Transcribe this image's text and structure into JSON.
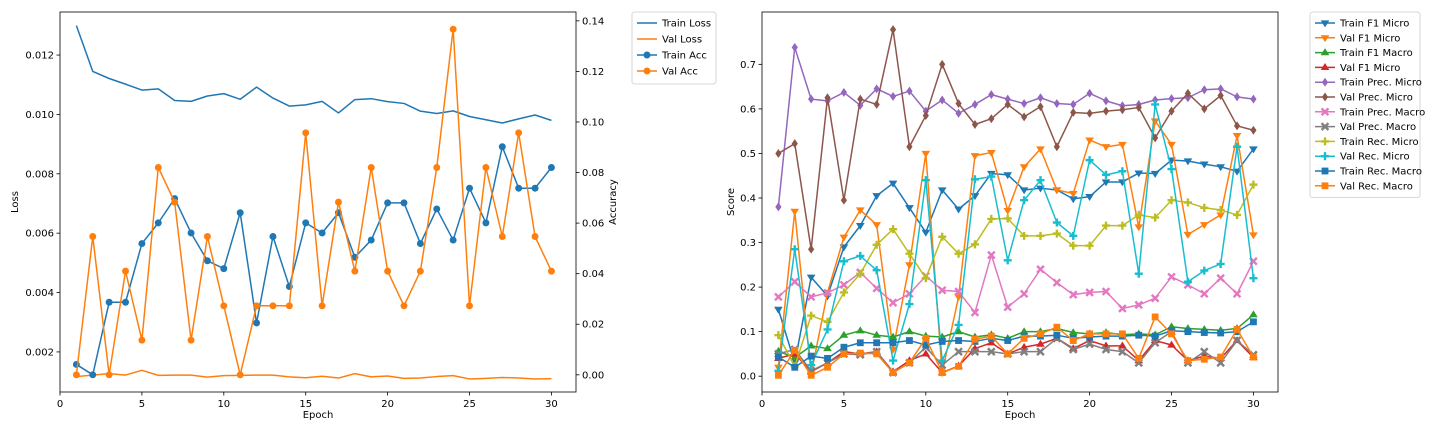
{
  "chart_data": [
    {
      "type": "line",
      "xlabel": "Epoch",
      "ylabel": "Loss",
      "ylabel_right": "Accuracy",
      "xlim": [
        0,
        31.5
      ],
      "ylim": [
        0.00065,
        0.01345
      ],
      "ylim_right": [
        -0.0068,
        0.1435
      ],
      "xticks": [
        0,
        5,
        10,
        15,
        20,
        25,
        30
      ],
      "yticks": [
        0.002,
        0.004,
        0.006,
        0.008,
        0.01,
        0.012
      ],
      "ytick_labels": [
        "0.002",
        "0.004",
        "0.006",
        "0.008",
        "0.010",
        "0.012"
      ],
      "yticks_right": [
        0.0,
        0.02,
        0.04,
        0.06,
        0.08,
        0.1,
        0.12,
        0.14
      ],
      "ytick_labels_right": [
        "0.00",
        "0.02",
        "0.04",
        "0.06",
        "0.08",
        "0.10",
        "0.12",
        "0.14"
      ],
      "grid": false,
      "legend_position": "outside-right-top",
      "x": [
        1,
        2,
        3,
        4,
        5,
        6,
        7,
        8,
        9,
        10,
        11,
        12,
        13,
        14,
        15,
        16,
        17,
        18,
        19,
        20,
        21,
        22,
        23,
        24,
        25,
        26,
        27,
        28,
        29,
        30
      ],
      "series": [
        {
          "name": "Train Loss",
          "axis": "left",
          "color": "#1f77b4",
          "marker": "none",
          "values": [
            0.01299,
            0.01145,
            0.01121,
            0.01102,
            0.01082,
            0.01086,
            0.01047,
            0.01044,
            0.01062,
            0.0107,
            0.01051,
            0.01092,
            0.01055,
            0.01028,
            0.01032,
            0.01044,
            0.01005,
            0.0105,
            0.01053,
            0.01043,
            0.01037,
            0.01011,
            0.01003,
            0.01012,
            0.00993,
            0.00982,
            0.00971,
            0.00985,
            0.00998,
            0.0098
          ]
        },
        {
          "name": "Val Loss",
          "axis": "left",
          "color": "#ff7f0e",
          "marker": "none",
          "values": [
            0.00117,
            0.00122,
            0.00127,
            0.00122,
            0.00138,
            0.00121,
            0.00122,
            0.00122,
            0.00115,
            0.0012,
            0.00121,
            0.00122,
            0.00122,
            0.00116,
            0.00113,
            0.00118,
            0.00112,
            0.00127,
            0.00116,
            0.00119,
            0.00111,
            0.00112,
            0.00117,
            0.0012,
            0.00109,
            0.00111,
            0.00114,
            0.00112,
            0.00109,
            0.0011
          ]
        },
        {
          "name": "Train Acc",
          "axis": "right",
          "color": "#1f77b4",
          "marker": "circle",
          "values": [
            0.0041,
            0.0,
            0.0287,
            0.0287,
            0.0519,
            0.0601,
            0.0697,
            0.0561,
            0.0451,
            0.042,
            0.0641,
            0.0205,
            0.0547,
            0.0349,
            0.0601,
            0.0561,
            0.0641,
            0.0465,
            0.0533,
            0.068,
            0.068,
            0.0519,
            0.0656,
            0.0533,
            0.0738,
            0.0601,
            0.0902,
            0.0738,
            0.0738,
            0.082
          ]
        },
        {
          "name": "Val Acc",
          "axis": "right",
          "color": "#ff7f0e",
          "marker": "circle",
          "values": [
            0.0,
            0.0547,
            0.0,
            0.041,
            0.0137,
            0.082,
            0.0683,
            0.0137,
            0.0547,
            0.0273,
            0.0,
            0.0273,
            0.0273,
            0.0273,
            0.0957,
            0.0273,
            0.0683,
            0.041,
            0.082,
            0.041,
            0.0273,
            0.041,
            0.082,
            0.1367,
            0.0273,
            0.082,
            0.0547,
            0.0957,
            0.0547,
            0.041
          ]
        }
      ]
    },
    {
      "type": "line",
      "xlabel": "Epoch",
      "ylabel": "Score",
      "xlim": [
        0,
        31.5
      ],
      "ylim": [
        -0.0355,
        0.8175
      ],
      "xticks": [
        0,
        5,
        10,
        15,
        20,
        25,
        30
      ],
      "yticks": [
        0.0,
        0.1,
        0.2,
        0.3,
        0.4,
        0.5,
        0.6,
        0.7
      ],
      "ytick_labels": [
        "0.0",
        "0.1",
        "0.2",
        "0.3",
        "0.4",
        "0.5",
        "0.6",
        "0.7"
      ],
      "grid": false,
      "legend_position": "outside-right-top",
      "x": [
        1,
        2,
        3,
        4,
        5,
        6,
        7,
        8,
        9,
        10,
        11,
        12,
        13,
        14,
        15,
        16,
        17,
        18,
        19,
        20,
        21,
        22,
        23,
        24,
        25,
        26,
        27,
        28,
        29,
        30
      ],
      "series": [
        {
          "name": "Train F1 Micro",
          "color": "#1f77b4",
          "marker": "tri-down",
          "values": [
            0.15,
            0.03,
            0.222,
            0.18,
            0.29,
            0.338,
            0.405,
            0.433,
            0.378,
            0.323,
            0.418,
            0.375,
            0.405,
            0.455,
            0.452,
            0.418,
            0.422,
            0.418,
            0.398,
            0.403,
            0.436,
            0.436,
            0.456,
            0.455,
            0.485,
            0.483,
            0.476,
            0.47,
            0.46,
            0.51
          ]
        },
        {
          "name": "Val F1 Micro",
          "color": "#ff7f0e",
          "marker": "tri-down",
          "values": [
            0.02,
            0.37,
            0.005,
            0.188,
            0.312,
            0.373,
            0.34,
            0.06,
            0.25,
            0.5,
            0.008,
            0.178,
            0.495,
            0.502,
            0.372,
            0.47,
            0.51,
            0.418,
            0.41,
            0.53,
            0.515,
            0.52,
            0.335,
            0.573,
            0.52,
            0.318,
            0.34,
            0.362,
            0.54,
            0.317
          ]
        },
        {
          "name": "Train F1 Macro",
          "color": "#2ca02c",
          "marker": "tri-up",
          "values": [
            0.056,
            0.042,
            0.068,
            0.062,
            0.092,
            0.102,
            0.092,
            0.088,
            0.1,
            0.09,
            0.088,
            0.1,
            0.088,
            0.093,
            0.085,
            0.1,
            0.1,
            0.107,
            0.098,
            0.095,
            0.098,
            0.093,
            0.095,
            0.093,
            0.111,
            0.107,
            0.105,
            0.103,
            0.107,
            0.138
          ]
        },
        {
          "name": "Val F1 Micro",
          "color": "#d62728",
          "marker": "tri-up",
          "values": [
            0.04,
            0.05,
            0.01,
            0.03,
            0.055,
            0.05,
            0.055,
            0.01,
            0.035,
            0.05,
            0.008,
            0.023,
            0.062,
            0.075,
            0.05,
            0.065,
            0.072,
            0.085,
            0.062,
            0.08,
            0.068,
            0.068,
            0.035,
            0.08,
            0.07,
            0.035,
            0.045,
            0.04,
            0.08,
            0.042
          ]
        },
        {
          "name": "Train Prec. Micro",
          "color": "#9467bd",
          "marker": "diamond",
          "values": [
            0.38,
            0.738,
            0.622,
            0.618,
            0.637,
            0.608,
            0.645,
            0.628,
            0.64,
            0.595,
            0.62,
            0.59,
            0.61,
            0.632,
            0.622,
            0.612,
            0.625,
            0.612,
            0.61,
            0.635,
            0.618,
            0.607,
            0.61,
            0.62,
            0.623,
            0.625,
            0.643,
            0.645,
            0.627,
            0.622
          ]
        },
        {
          "name": "Val Prec. Micro",
          "color": "#8c564b",
          "marker": "diamond",
          "values": [
            0.5,
            0.522,
            0.285,
            0.625,
            0.395,
            0.622,
            0.61,
            0.778,
            0.515,
            0.585,
            0.7,
            0.612,
            0.565,
            0.578,
            0.61,
            0.582,
            0.605,
            0.515,
            0.592,
            0.59,
            0.595,
            0.598,
            0.603,
            0.535,
            0.595,
            0.635,
            0.6,
            0.63,
            0.562,
            0.552
          ]
        },
        {
          "name": "Train Prec. Macro",
          "color": "#e377c2",
          "marker": "x",
          "values": [
            0.178,
            0.212,
            0.178,
            0.187,
            0.205,
            0.233,
            0.197,
            0.165,
            0.185,
            0.225,
            0.193,
            0.19,
            0.143,
            0.272,
            0.155,
            0.185,
            0.24,
            0.21,
            0.183,
            0.188,
            0.19,
            0.152,
            0.16,
            0.175,
            0.223,
            0.205,
            0.185,
            0.22,
            0.185,
            0.258
          ]
        },
        {
          "name": "Val Prec. Macro",
          "color": "#7f7f7f",
          "marker": "x",
          "values": [
            0.05,
            0.06,
            0.012,
            0.03,
            0.05,
            0.048,
            0.055,
            0.008,
            0.03,
            0.065,
            0.025,
            0.055,
            0.055,
            0.055,
            0.05,
            0.055,
            0.055,
            0.085,
            0.06,
            0.072,
            0.06,
            0.055,
            0.03,
            0.075,
            0.1,
            0.03,
            0.055,
            0.03,
            0.08,
            0.048
          ]
        },
        {
          "name": "Train Rec. Micro",
          "color": "#bcbd22",
          "marker": "plus",
          "values": [
            0.092,
            0.022,
            0.136,
            0.122,
            0.188,
            0.23,
            0.295,
            0.33,
            0.275,
            0.22,
            0.313,
            0.275,
            0.296,
            0.353,
            0.354,
            0.315,
            0.315,
            0.32,
            0.293,
            0.293,
            0.338,
            0.338,
            0.362,
            0.356,
            0.395,
            0.39,
            0.378,
            0.373,
            0.362,
            0.43
          ]
        },
        {
          "name": "Val Rec. Micro",
          "color": "#17becf",
          "marker": "plus",
          "values": [
            0.012,
            0.285,
            0.025,
            0.105,
            0.258,
            0.27,
            0.238,
            0.035,
            0.162,
            0.44,
            0.035,
            0.115,
            0.442,
            0.448,
            0.26,
            0.395,
            0.44,
            0.345,
            0.315,
            0.485,
            0.452,
            0.46,
            0.23,
            0.61,
            0.465,
            0.212,
            0.237,
            0.252,
            0.515,
            0.22
          ]
        },
        {
          "name": "Train Rec. Macro",
          "color": "#1f77b4",
          "marker": "square",
          "values": [
            0.043,
            0.02,
            0.045,
            0.04,
            0.065,
            0.075,
            0.075,
            0.075,
            0.08,
            0.07,
            0.078,
            0.08,
            0.078,
            0.085,
            0.08,
            0.09,
            0.09,
            0.092,
            0.085,
            0.088,
            0.09,
            0.09,
            0.092,
            0.09,
            0.102,
            0.1,
            0.098,
            0.097,
            0.1,
            0.122
          ]
        },
        {
          "name": "Val Rec. Macro",
          "color": "#ff7f0e",
          "marker": "square",
          "values": [
            0.002,
            0.058,
            0.002,
            0.02,
            0.05,
            0.052,
            0.05,
            0.008,
            0.03,
            0.085,
            0.008,
            0.022,
            0.083,
            0.09,
            0.05,
            0.085,
            0.095,
            0.11,
            0.08,
            0.095,
            0.095,
            0.095,
            0.04,
            0.133,
            0.095,
            0.035,
            0.038,
            0.043,
            0.105,
            0.043
          ]
        }
      ]
    }
  ]
}
